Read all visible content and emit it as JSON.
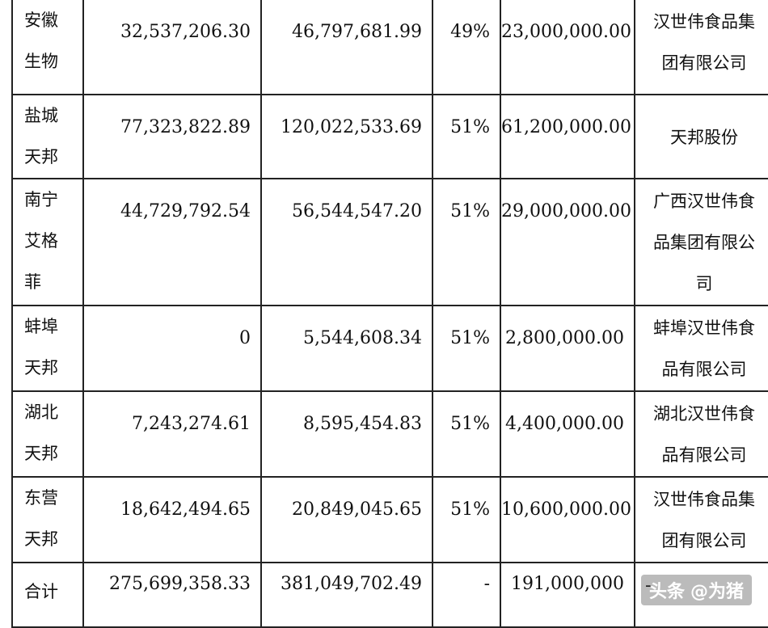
{
  "rows": [
    {
      "name": "安徽\n生物",
      "v1": "32,537,206.30",
      "v2": "46,797,681.99",
      "pct": "49%",
      "v3": "23,000,000.00",
      "owner": "汉世伟食品集\n团有限公司"
    },
    {
      "name": "盐城\n天邦",
      "v1": "77,323,822.89",
      "v2": "120,022,533.69",
      "pct": "51%",
      "v3": "61,200,000.00",
      "owner": "天邦股份"
    },
    {
      "name": "南宁\n艾格\n菲",
      "v1": "44,729,792.54",
      "v2": "56,544,547.20",
      "pct": "51%",
      "v3": "29,000,000.00",
      "owner": "广西汉世伟食\n品集团有限公\n司"
    },
    {
      "name": "蚌埠\n天邦",
      "v1": "0",
      "v2": "5,544,608.34",
      "pct": "51%",
      "v3": "2,800,000.00",
      "owner": "蚌埠汉世伟食\n品有限公司"
    },
    {
      "name": "湖北\n天邦",
      "v1": "7,243,274.61",
      "v2": "8,595,454.83",
      "pct": "51%",
      "v3": "4,400,000.00",
      "owner": "湖北汉世伟食\n品有限公司"
    },
    {
      "name": "东营\n天邦",
      "v1": "18,642,494.65",
      "v2": "20,849,045.65",
      "pct": "51%",
      "v3": "10,600,000.00",
      "owner": "汉世伟食品集\n团有限公司"
    },
    {
      "name": "合计",
      "v1": "275,699,358.33",
      "v2": "381,049,702.49",
      "pct": "-",
      "v3": "191,000,000",
      "owner": "-"
    }
  ],
  "watermark": {
    "prefix": "头条",
    "handle": "@为猪"
  }
}
